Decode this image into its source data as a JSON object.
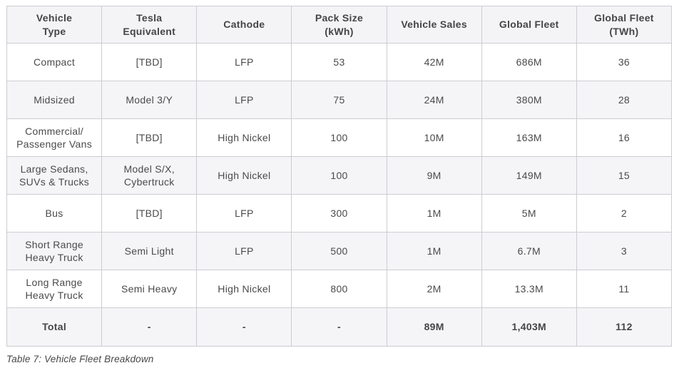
{
  "table": {
    "headers": [
      "Vehicle\nType",
      "Tesla\nEquivalent",
      "Cathode",
      "Pack Size\n(kWh)",
      "Vehicle Sales",
      "Global Fleet",
      "Global Fleet\n(TWh)"
    ],
    "rows": [
      {
        "cells": [
          "Compact",
          "[TBD]",
          "LFP",
          "53",
          "42M",
          "686M",
          "36"
        ]
      },
      {
        "cells": [
          "Midsized",
          "Model 3/Y",
          "LFP",
          "75",
          "24M",
          "380M",
          "28"
        ]
      },
      {
        "cells": [
          "Commercial/\nPassenger Vans",
          "[TBD]",
          "High Nickel",
          "100",
          "10M",
          "163M",
          "16"
        ]
      },
      {
        "cells": [
          "Large Sedans,\nSUVs & Trucks",
          "Model S/X,\nCybertruck",
          "High Nickel",
          "100",
          "9M",
          "149M",
          "15"
        ]
      },
      {
        "cells": [
          "Bus",
          "[TBD]",
          "LFP",
          "300",
          "1M",
          "5M",
          "2"
        ]
      },
      {
        "cells": [
          "Short Range\nHeavy Truck",
          "Semi Light",
          "LFP",
          "500",
          "1M",
          "6.7M",
          "3"
        ]
      },
      {
        "cells": [
          "Long Range\nHeavy Truck",
          "Semi Heavy",
          "High Nickel",
          "800",
          "2M",
          "13.3M",
          "11"
        ]
      }
    ],
    "total_row": {
      "cells": [
        "Total",
        "-",
        "-",
        "-",
        "89M",
        "1,403M",
        "112"
      ]
    },
    "caption": "Table 7: Vehicle Fleet Breakdown"
  },
  "colors": {
    "header_bg": "#f4f4f6",
    "stripe_bg": "#f5f5f7",
    "border": "#cccdd2",
    "text": "#4a4a4d"
  }
}
